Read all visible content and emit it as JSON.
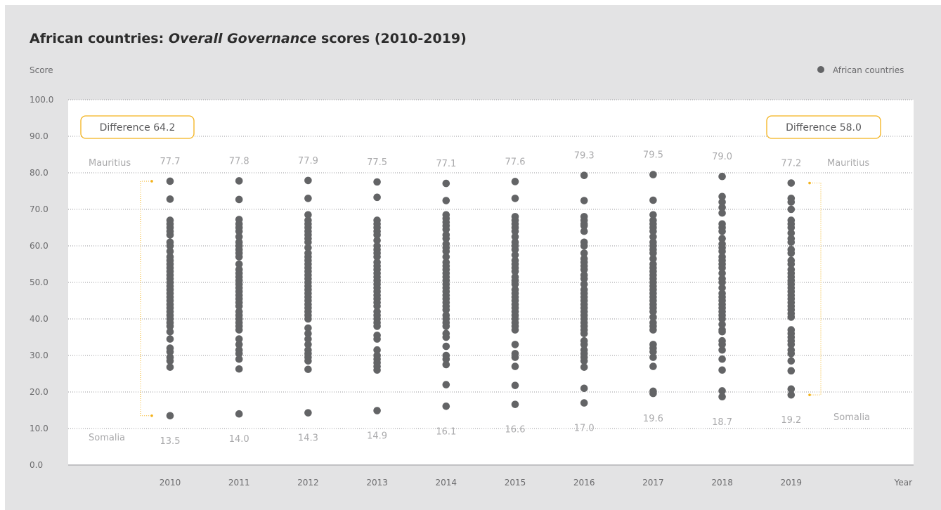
{
  "chart_data": {
    "type": "scatter",
    "title_parts": [
      "African countries: ",
      "Overall Governance",
      " scores (2010-2019)"
    ],
    "ylabel": "Score",
    "xlabel": "Year",
    "ylim": [
      0,
      100
    ],
    "y_ticks": [
      "0.0",
      "10.0",
      "20.0",
      "30.0",
      "40.0",
      "50.0",
      "60.0",
      "70.0",
      "80.0",
      "90.0",
      "100.0"
    ],
    "categories": [
      "2010",
      "2011",
      "2012",
      "2013",
      "2014",
      "2015",
      "2016",
      "2017",
      "2018",
      "2019"
    ],
    "legend": {
      "label": "African countries",
      "position": "top-right"
    },
    "colors": {
      "points": "#636466",
      "accent": "#f3b21b",
      "muted_text": "#a9a9ab"
    },
    "grid": true,
    "series": [
      {
        "name": "African countries",
        "values_by_year": [
          [
            77.7,
            72.8,
            67.0,
            66.0,
            65.0,
            64.0,
            63.0,
            61.0,
            60.0,
            58.5,
            57.0,
            56.0,
            55.0,
            54.0,
            53.0,
            52.0,
            51.0,
            50.0,
            49.0,
            48.0,
            47.0,
            46.0,
            45.0,
            44.0,
            43.0,
            42.0,
            41.0,
            40.0,
            39.0,
            38.0,
            36.5,
            34.5,
            32.0,
            31.0,
            29.5,
            28.5,
            26.8,
            13.5
          ],
          [
            77.8,
            72.7,
            67.2,
            66.0,
            65.0,
            64.0,
            62.5,
            61.0,
            60.0,
            59.0,
            58.0,
            57.0,
            55.0,
            53.5,
            52.5,
            51.5,
            50.5,
            49.5,
            48.5,
            47.5,
            46.5,
            45.5,
            44.5,
            43.5,
            42.0,
            41.0,
            40.0,
            39.0,
            38.0,
            37.0,
            34.5,
            33.0,
            31.5,
            30.5,
            29.0,
            26.3,
            14.0
          ],
          [
            77.9,
            73.0,
            68.5,
            67.0,
            66.0,
            65.0,
            64.0,
            63.0,
            62.0,
            61.0,
            59.5,
            58.0,
            57.0,
            56.0,
            55.0,
            54.0,
            53.0,
            52.0,
            51.0,
            50.0,
            49.0,
            48.0,
            47.0,
            46.0,
            45.0,
            44.0,
            43.0,
            42.0,
            41.0,
            40.0,
            37.5,
            36.0,
            34.5,
            33.0,
            31.5,
            30.5,
            29.5,
            28.5,
            26.2,
            14.3
          ],
          [
            77.5,
            73.3,
            67.0,
            66.0,
            65.0,
            64.0,
            63.0,
            61.5,
            60.0,
            59.0,
            58.0,
            57.0,
            55.5,
            54.5,
            53.5,
            52.5,
            51.5,
            50.5,
            49.5,
            48.5,
            47.5,
            46.5,
            45.5,
            44.5,
            43.5,
            42.0,
            41.0,
            40.0,
            39.0,
            38.0,
            35.5,
            34.5,
            31.5,
            30.0,
            29.0,
            28.0,
            27.0,
            26.0,
            14.9
          ],
          [
            77.1,
            72.4,
            68.5,
            67.5,
            66.5,
            65.5,
            64.5,
            63.0,
            62.0,
            60.5,
            59.5,
            58.5,
            57.0,
            55.5,
            54.5,
            53.5,
            52.5,
            51.5,
            50.5,
            49.5,
            48.5,
            47.5,
            46.5,
            45.5,
            44.5,
            43.5,
            42.5,
            41.0,
            40.0,
            39.0,
            38.0,
            36.0,
            35.0,
            32.5,
            30.0,
            29.0,
            27.5,
            22.0,
            16.1
          ],
          [
            77.6,
            73.0,
            68.0,
            67.0,
            66.0,
            65.0,
            64.0,
            62.5,
            61.0,
            60.0,
            59.0,
            57.5,
            56.0,
            55.0,
            54.0,
            53.0,
            51.5,
            50.5,
            49.5,
            48.0,
            47.0,
            46.0,
            45.0,
            44.0,
            43.0,
            42.0,
            41.0,
            40.0,
            39.0,
            38.0,
            37.0,
            33.0,
            30.5,
            29.5,
            27.0,
            21.8,
            16.6
          ],
          [
            79.3,
            72.4,
            68.0,
            67.0,
            66.0,
            65.5,
            64.0,
            61.0,
            60.0,
            58.0,
            56.5,
            55.5,
            54.5,
            53.5,
            52.0,
            51.0,
            49.5,
            48.0,
            47.0,
            46.0,
            45.0,
            44.0,
            43.0,
            42.0,
            41.0,
            40.0,
            39.0,
            38.0,
            37.0,
            36.0,
            34.0,
            33.0,
            31.5,
            30.5,
            29.5,
            28.5,
            26.8,
            21.0,
            17.0
          ],
          [
            79.5,
            72.5,
            68.5,
            67.0,
            66.0,
            65.0,
            64.0,
            62.5,
            61.0,
            60.0,
            59.0,
            58.0,
            56.5,
            55.0,
            54.0,
            53.0,
            52.0,
            51.0,
            50.0,
            49.0,
            48.0,
            47.0,
            46.0,
            45.0,
            44.0,
            43.0,
            42.0,
            40.5,
            39.0,
            38.0,
            37.0,
            33.0,
            32.0,
            31.0,
            29.5,
            27.0,
            20.2,
            19.6
          ],
          [
            79.0,
            73.5,
            72.0,
            70.5,
            69.0,
            66.0,
            65.0,
            64.0,
            62.0,
            60.5,
            59.5,
            58.5,
            57.0,
            56.0,
            55.0,
            54.0,
            52.5,
            51.0,
            50.0,
            48.5,
            47.0,
            46.0,
            45.0,
            44.0,
            43.0,
            42.0,
            41.0,
            40.0,
            38.5,
            37.0,
            36.5,
            34.0,
            33.0,
            31.5,
            29.0,
            26.0,
            20.3,
            18.7
          ],
          [
            77.2,
            73.0,
            72.0,
            70.0,
            67.0,
            66.0,
            65.0,
            63.5,
            62.0,
            61.0,
            59.0,
            58.0,
            56.0,
            55.0,
            53.5,
            52.5,
            51.5,
            50.5,
            49.5,
            48.5,
            47.5,
            46.5,
            45.5,
            44.5,
            43.5,
            42.5,
            41.5,
            40.5,
            37.0,
            36.0,
            35.0,
            34.0,
            33.0,
            31.5,
            30.5,
            28.5,
            25.8,
            20.8,
            19.2
          ]
        ],
        "max_labels": [
          "77.7",
          "77.8",
          "77.9",
          "77.5",
          "77.1",
          "77.6",
          "79.3",
          "79.5",
          "79.0",
          "77.2"
        ],
        "min_labels": [
          "13.5",
          "14.0",
          "14.3",
          "14.9",
          "16.1",
          "16.6",
          "17.0",
          "19.6",
          "18.7",
          "19.2"
        ]
      }
    ],
    "annotations": {
      "top_country": "Mauritius",
      "bottom_country": "Somalia",
      "difference_2010": "Difference 64.2",
      "difference_2019": "Difference 58.0"
    }
  }
}
